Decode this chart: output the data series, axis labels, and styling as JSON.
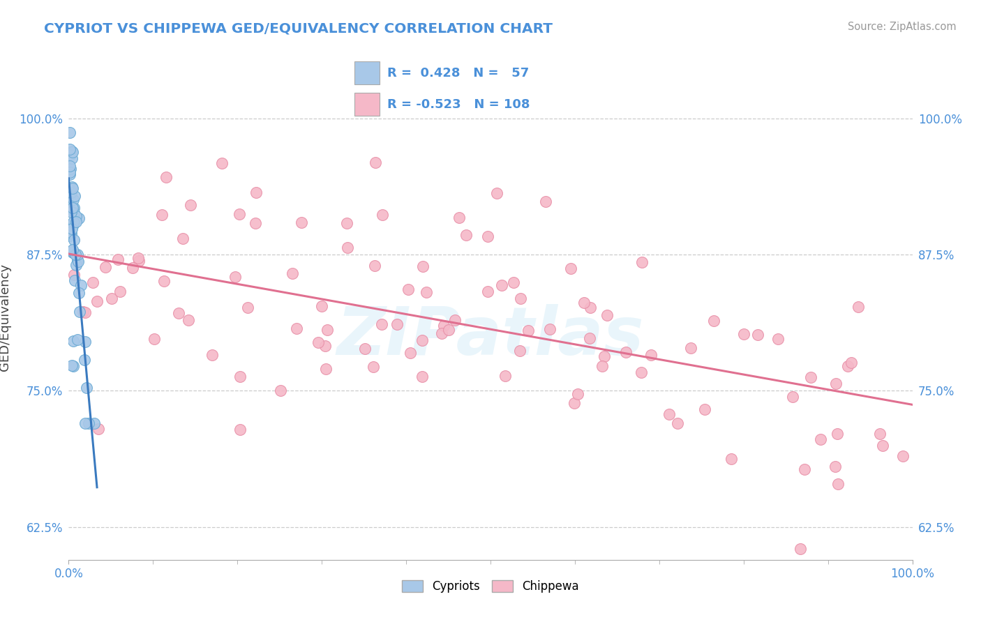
{
  "title": "CYPRIOT VS CHIPPEWA GED/EQUIVALENCY CORRELATION CHART",
  "source": "Source: ZipAtlas.com",
  "ylabel": "GED/Equivalency",
  "legend_label1": "Cypriots",
  "legend_label2": "Chippewa",
  "R1": 0.428,
  "N1": 57,
  "R2": -0.523,
  "N2": 108,
  "watermark": "ZIPatlas",
  "blue_dot_color": "#a8c8e8",
  "blue_dot_edge": "#6aaad4",
  "pink_dot_color": "#f5b8c8",
  "pink_dot_edge": "#e890a8",
  "blue_line_color": "#3a7abf",
  "pink_line_color": "#e07090",
  "title_color": "#4a90d9",
  "xlim": [
    0.0,
    1.0
  ],
  "ylim": [
    0.595,
    1.04
  ],
  "yticks": [
    0.625,
    0.75,
    0.875,
    1.0
  ],
  "ytick_labels": [
    "62.5%",
    "75.0%",
    "87.5%",
    "100.0%"
  ],
  "xtick_labels": [
    "0.0%",
    "100.0%"
  ]
}
